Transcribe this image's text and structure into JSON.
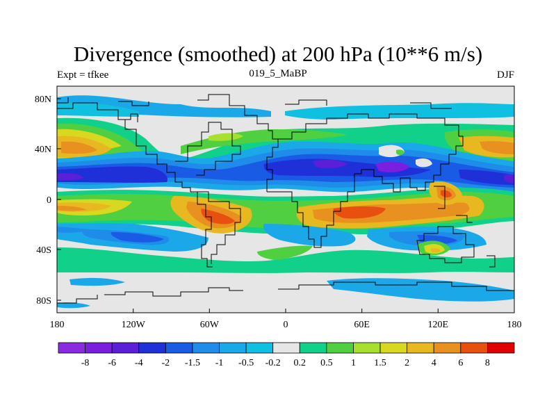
{
  "title": "Divergence (smoothed) at 200 hPa (10**6 m/s)",
  "left_label": "Expt = tfkee",
  "center_label": "019_5_MaBP",
  "right_label": "DJF",
  "lat_ticks": [
    "80N",
    "40N",
    "0",
    "40S",
    "80S"
  ],
  "lon_ticks": [
    "180",
    "120W",
    "60W",
    "0",
    "60E",
    "120E",
    "180"
  ],
  "colorbar": {
    "colors": [
      "#8a2be2",
      "#7a1fe0",
      "#5c1fd8",
      "#2030d8",
      "#1a5be6",
      "#1e8ce8",
      "#1aa8e8",
      "#10c0e0",
      "#e6e6e6",
      "#10d08a",
      "#50d040",
      "#a8e030",
      "#d8d820",
      "#e8b820",
      "#e89020",
      "#e85010",
      "#e00000"
    ],
    "labels": [
      "-8",
      "-6",
      "-4",
      "-2",
      "-1.5",
      "-1",
      "-0.5",
      "-0.2",
      "0.2",
      "0.5",
      "1",
      "1.5",
      "2",
      "4",
      "6",
      "8"
    ]
  }
}
